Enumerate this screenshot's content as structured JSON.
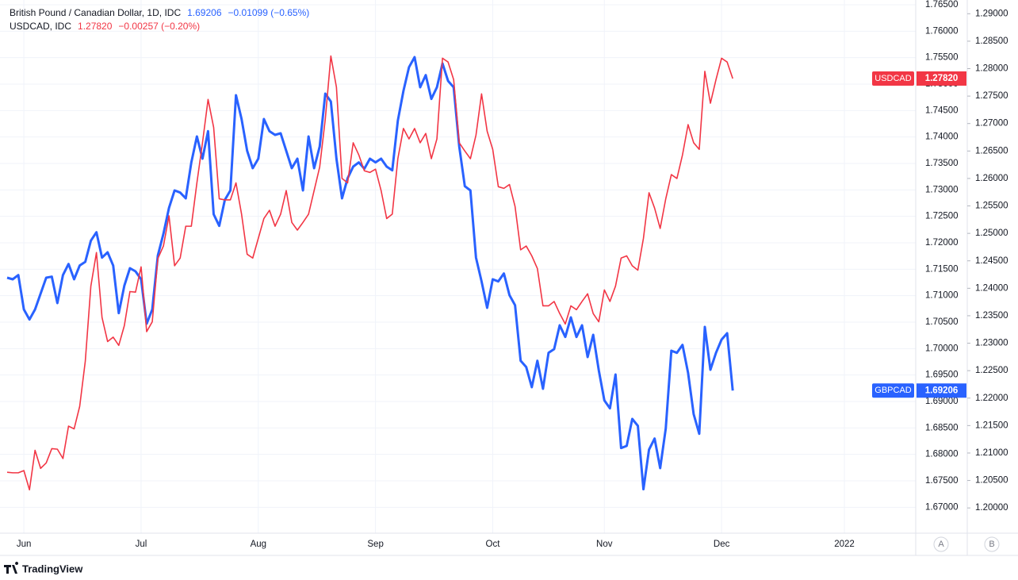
{
  "chart_data": {
    "type": "line",
    "legend": [
      {
        "title": "British Pound / Canadian Dollar, 1D, IDC",
        "price": "1.69206",
        "change": "−0.01099 (−0.65%)"
      },
      {
        "title": "USDCAD, IDC",
        "price": "1.27820",
        "change": "−0.00257 (−0.20%)"
      }
    ],
    "categories": [
      null,
      null,
      null,
      "Jun",
      null,
      null,
      null,
      null,
      null,
      null,
      null,
      null,
      null,
      null,
      null,
      null,
      null,
      null,
      null,
      null,
      null,
      null,
      null,
      null,
      "Jul",
      null,
      null,
      null,
      null,
      null,
      null,
      null,
      null,
      null,
      null,
      null,
      null,
      null,
      null,
      null,
      null,
      null,
      null,
      null,
      null,
      "Aug",
      null,
      null,
      null,
      null,
      null,
      null,
      null,
      null,
      null,
      null,
      null,
      null,
      null,
      null,
      null,
      null,
      null,
      null,
      null,
      null,
      "Sep",
      null,
      null,
      null,
      null,
      null,
      null,
      null,
      null,
      null,
      null,
      null,
      null,
      null,
      null,
      null,
      null,
      null,
      null,
      null,
      null,
      "Oct",
      null,
      null,
      null,
      null,
      null,
      null,
      null,
      null,
      null,
      null,
      null,
      null,
      null,
      null,
      null,
      null,
      null,
      null,
      null,
      "Nov",
      null,
      null,
      null,
      null,
      null,
      null,
      null,
      null,
      null,
      null,
      null,
      null,
      null,
      null,
      null,
      null,
      null,
      null,
      null,
      null,
      "Dec",
      null,
      null,
      null,
      null,
      null,
      null,
      null,
      null,
      null,
      null,
      null,
      null,
      null,
      null,
      null,
      null,
      null,
      null,
      null,
      null,
      null,
      "2022"
    ],
    "series": [
      {
        "name": "GBPCAD",
        "color": "#2962ff",
        "axis": "y",
        "values": [
          1.7134,
          1.7131,
          1.7139,
          1.7074,
          1.7055,
          1.7074,
          1.7104,
          1.7134,
          1.7136,
          1.7086,
          1.7139,
          1.716,
          1.7131,
          1.7157,
          1.7164,
          1.7204,
          1.722,
          1.7172,
          1.7182,
          1.7157,
          1.7067,
          1.7119,
          1.7152,
          1.7146,
          1.7131,
          1.7047,
          1.7074,
          1.7176,
          1.7217,
          1.7266,
          1.7299,
          1.7295,
          1.7284,
          1.7352,
          1.7401,
          1.7359,
          1.7411,
          1.7254,
          1.7232,
          1.7281,
          1.7299,
          1.7479,
          1.7434,
          1.7374,
          1.7341,
          1.7359,
          1.7434,
          1.7411,
          1.7404,
          1.7407,
          1.7374,
          1.7341,
          1.7359,
          1.7299,
          1.7401,
          1.7341,
          1.7382,
          1.7482,
          1.7467,
          1.7359,
          1.7284,
          1.7322,
          1.7344,
          1.7352,
          1.734,
          1.7359,
          1.7352,
          1.7359,
          1.7344,
          1.7337,
          1.7431,
          1.7487,
          1.7532,
          1.7551,
          1.7494,
          1.7517,
          1.7472,
          1.7494,
          1.7539,
          1.7506,
          1.7494,
          1.7382,
          1.7307,
          1.7299,
          1.7172,
          1.7127,
          1.7077,
          1.7131,
          1.7127,
          1.7142,
          1.7101,
          1.7082,
          1.6977,
          1.6965,
          1.6927,
          1.6977,
          1.6924,
          1.6992,
          1.6999,
          1.7044,
          1.7022,
          1.7059,
          1.7022,
          1.7044,
          1.6984,
          1.7026,
          1.6959,
          1.6902,
          1.6887,
          1.6951,
          1.6812,
          1.6816,
          1.6867,
          1.6854,
          1.6734,
          1.6809,
          1.683,
          1.6774,
          1.6849,
          1.6996,
          1.6992,
          1.7007,
          1.6954,
          1.6876,
          1.6839,
          1.7041,
          1.696,
          1.6992,
          1.7017,
          1.7029,
          1.69206,
          null,
          null,
          null,
          null,
          null,
          null,
          null,
          null,
          null,
          null,
          null,
          null,
          null,
          null,
          null,
          null,
          null,
          null,
          null,
          null
        ]
      },
      {
        "name": "USDCAD",
        "color": "#f23645",
        "axis": "y2",
        "values": [
          1.2065,
          1.2064,
          1.2064,
          1.2068,
          1.2033,
          1.2105,
          1.2072,
          1.2082,
          1.2108,
          1.2107,
          1.209,
          1.2149,
          1.2144,
          1.2185,
          1.2267,
          1.2404,
          1.2465,
          1.2347,
          1.2303,
          1.2311,
          1.2296,
          1.2332,
          1.2394,
          1.2393,
          1.2439,
          1.2321,
          1.2339,
          1.2454,
          1.2477,
          1.2532,
          1.2441,
          1.2455,
          1.2513,
          1.2513,
          1.2592,
          1.2665,
          1.2744,
          1.2693,
          1.2563,
          1.2561,
          1.2561,
          1.2592,
          1.2535,
          1.2462,
          1.2455,
          1.2491,
          1.2527,
          1.2542,
          1.2513,
          1.2535,
          1.2578,
          1.252,
          1.2506,
          1.252,
          1.2535,
          1.2578,
          1.2621,
          1.2708,
          1.2823,
          1.2766,
          1.26,
          1.2592,
          1.2665,
          1.2643,
          1.2614,
          1.2611,
          1.2617,
          1.2578,
          1.2527,
          1.2535,
          1.2636,
          1.2691,
          1.2672,
          1.2691,
          1.2665,
          1.2682,
          1.2636,
          1.2672,
          1.2819,
          1.2812,
          1.278,
          1.2665,
          1.265,
          1.2636,
          1.2679,
          1.2754,
          1.2686,
          1.2653,
          1.2585,
          1.2582,
          1.2589,
          1.2549,
          1.247,
          1.2477,
          1.2459,
          1.2436,
          1.2368,
          1.2368,
          1.2376,
          1.2354,
          1.2335,
          1.2368,
          1.2361,
          1.2376,
          1.239,
          1.2354,
          1.2339,
          1.2397,
          1.2376,
          1.2404,
          1.2455,
          1.2459,
          1.2441,
          1.2433,
          1.2491,
          1.2574,
          1.2546,
          1.2509,
          1.2563,
          1.2607,
          1.26,
          1.2643,
          1.2698,
          1.2665,
          1.2653,
          1.2795,
          1.2737,
          1.278,
          1.2819,
          1.2812,
          1.2782,
          null,
          null,
          null,
          null,
          null,
          null,
          null,
          null,
          null,
          null,
          null,
          null,
          null,
          null,
          null,
          null,
          null,
          null,
          null,
          null
        ]
      }
    ],
    "ylim": [
      1.6651,
      1.7659
    ],
    "yticks": [
      {
        "value": 1.765,
        "label": "1.76500"
      },
      {
        "value": 1.76,
        "label": "1.76000"
      },
      {
        "value": 1.755,
        "label": "1.75500"
      },
      {
        "value": 1.75,
        "label": "1.75000"
      },
      {
        "value": 1.745,
        "label": "1.74500"
      },
      {
        "value": 1.74,
        "label": "1.74000"
      },
      {
        "value": 1.735,
        "label": "1.73500"
      },
      {
        "value": 1.73,
        "label": "1.73000"
      },
      {
        "value": 1.725,
        "label": "1.72500"
      },
      {
        "value": 1.72,
        "label": "1.72000"
      },
      {
        "value": 1.715,
        "label": "1.71500"
      },
      {
        "value": 1.71,
        "label": "1.71000"
      },
      {
        "value": 1.705,
        "label": "1.70500"
      },
      {
        "value": 1.7,
        "label": "1.70000"
      },
      {
        "value": 1.695,
        "label": "1.69500"
      },
      {
        "value": 1.69,
        "label": "1.69000"
      },
      {
        "value": 1.685,
        "label": "1.68500"
      },
      {
        "value": 1.68,
        "label": "1.68000"
      },
      {
        "value": 1.675,
        "label": "1.67500"
      },
      {
        "value": 1.67,
        "label": "1.67000"
      }
    ],
    "y2lim": [
      1.1954,
      1.2925
    ],
    "y2ticks": [
      {
        "value": 1.29,
        "label": "1.29000"
      },
      {
        "value": 1.285,
        "label": "1.28500"
      },
      {
        "value": 1.28,
        "label": "1.28000"
      },
      {
        "value": 1.275,
        "label": "1.27500"
      },
      {
        "value": 1.27,
        "label": "1.27000"
      },
      {
        "value": 1.265,
        "label": "1.26500"
      },
      {
        "value": 1.26,
        "label": "1.26000"
      },
      {
        "value": 1.255,
        "label": "1.25500"
      },
      {
        "value": 1.25,
        "label": "1.25000"
      },
      {
        "value": 1.245,
        "label": "1.24500"
      },
      {
        "value": 1.24,
        "label": "1.24000"
      },
      {
        "value": 1.235,
        "label": "1.23500"
      },
      {
        "value": 1.23,
        "label": "1.23000"
      },
      {
        "value": 1.225,
        "label": "1.22500"
      },
      {
        "value": 1.22,
        "label": "1.22000"
      },
      {
        "value": 1.215,
        "label": "1.21500"
      },
      {
        "value": 1.21,
        "label": "1.21000"
      },
      {
        "value": 1.205,
        "label": "1.20500"
      },
      {
        "value": 1.2,
        "label": "1.20000"
      }
    ],
    "grid": true,
    "axis_buttons": [
      "A",
      "B"
    ],
    "branding": "TradingView"
  }
}
